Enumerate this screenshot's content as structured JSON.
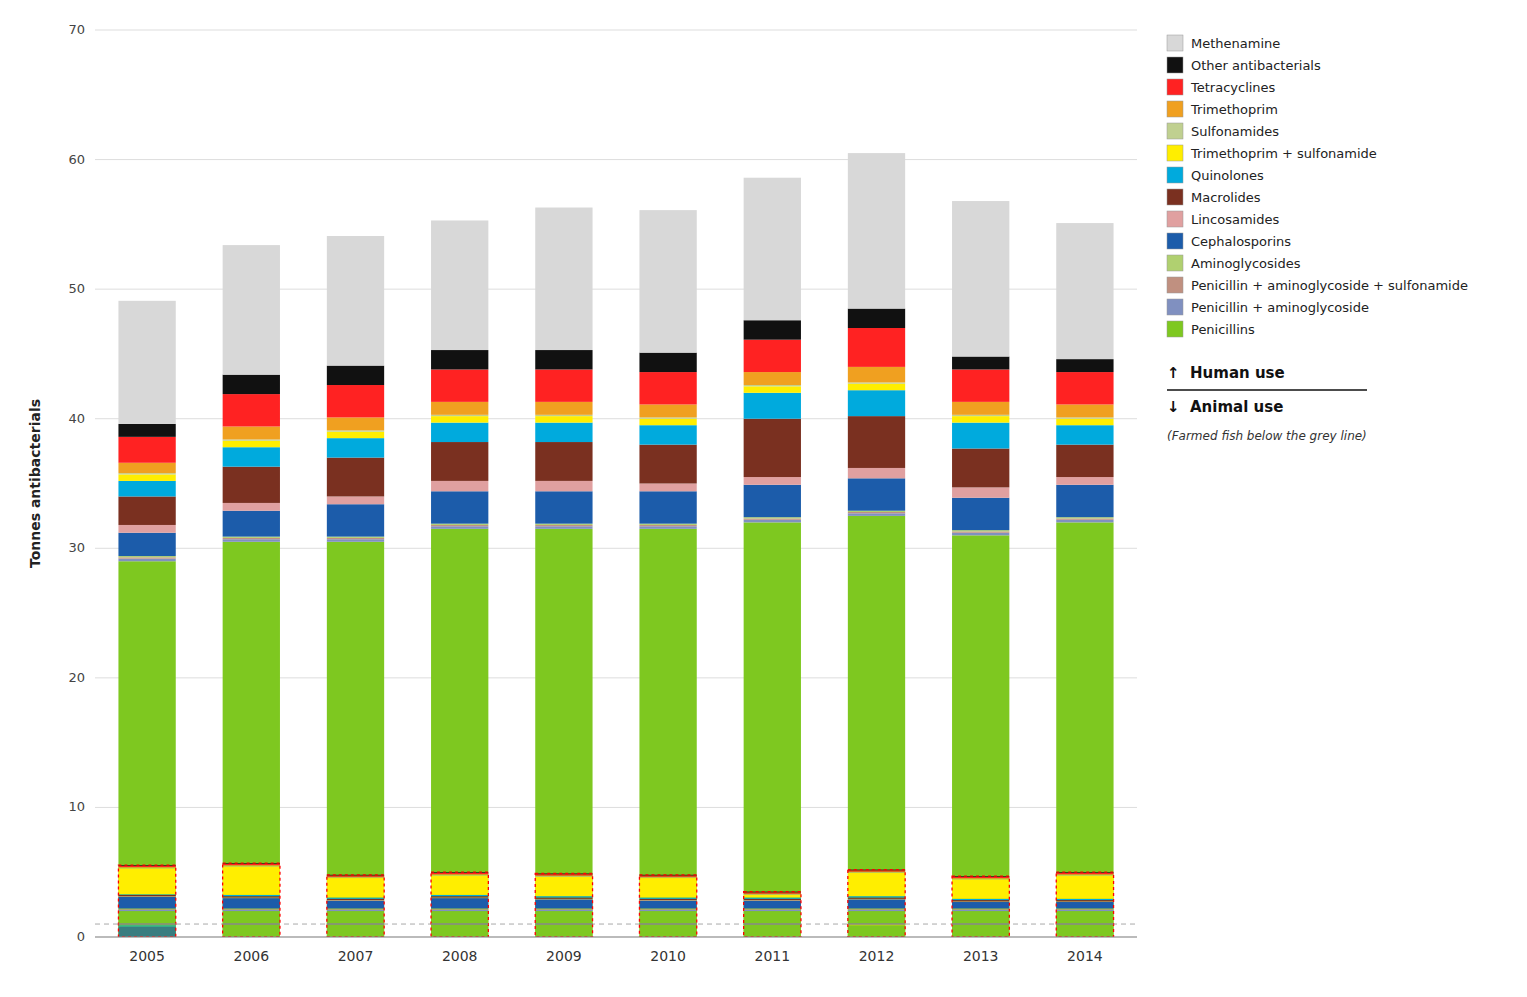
{
  "chart_data": {
    "type": "bar",
    "stacked": true,
    "categories": [
      "2005",
      "2006",
      "2007",
      "2008",
      "2009",
      "2010",
      "2011",
      "2012",
      "2013",
      "2014"
    ],
    "ylabel": "Tonnes antibacterials",
    "ylim": [
      0,
      70
    ],
    "yticks": [
      0,
      10,
      20,
      30,
      40,
      50,
      60,
      70
    ],
    "grid": true,
    "legend": "upper right",
    "grey_line": 1.0,
    "annotations": [
      "↑  Human use",
      "↓  Animal use",
      "(Farmed fish below the grey line)"
    ],
    "series": [
      {
        "name": "Penicillins",
        "color": "#7ec820",
        "values": [
          29.0,
          30.5,
          30.5,
          31.5,
          31.5,
          31.5,
          32.0,
          32.5,
          31.0,
          32.0
        ],
        "animal": [
          2.0,
          2.0,
          2.0,
          2.0,
          2.0,
          2.0,
          2.0,
          2.0,
          2.0,
          2.0
        ],
        "fish": [
          0.0,
          0.0,
          0.0,
          0.0,
          0.0,
          0.0,
          0.0,
          0.9,
          0.0,
          0.0
        ]
      },
      {
        "name": "Penicillin + aminoglycoside",
        "color": "#8090c0",
        "values": [
          0.2,
          0.2,
          0.2,
          0.2,
          0.2,
          0.2,
          0.2,
          0.2,
          0.2,
          0.2
        ],
        "animal": [
          0.1,
          0.1,
          0.1,
          0.1,
          0.1,
          0.1,
          0.1,
          0.1,
          0.1,
          0.1
        ]
      },
      {
        "name": "Penicillin + aminoglycoside + sulfonamide",
        "color": "#c09080",
        "values": [
          0.1,
          0.1,
          0.1,
          0.1,
          0.1,
          0.1,
          0.1,
          0.1,
          0.1,
          0.1
        ],
        "animal": [
          0.05,
          0.05,
          0.05,
          0.05,
          0.05,
          0.05,
          0.05,
          0.05,
          0.05,
          0.05
        ]
      },
      {
        "name": "Aminoglycosides",
        "color": "#b0d070",
        "values": [
          0.1,
          0.1,
          0.1,
          0.1,
          0.1,
          0.1,
          0.1,
          0.1,
          0.1,
          0.1
        ],
        "animal": [
          0.05,
          0.05,
          0.05,
          0.05,
          0.05,
          0.05,
          0.05,
          0.05,
          0.05,
          0.05
        ]
      },
      {
        "name": "Cephalosporins",
        "color": "#1c5caa",
        "values": [
          1.8,
          2.0,
          2.5,
          2.5,
          2.5,
          2.5,
          2.5,
          2.5,
          2.5,
          2.5
        ],
        "animal": [
          0.9,
          0.8,
          0.6,
          0.8,
          0.7,
          0.6,
          0.6,
          0.7,
          0.5,
          0.5
        ],
        "fish": [
          0.8,
          0.0,
          0.0,
          0.0,
          0.0,
          0.0,
          0.0,
          0.0,
          0.0,
          0.0
        ]
      },
      {
        "name": "Lincosamides",
        "color": "#e0a0a0",
        "values": [
          0.6,
          0.6,
          0.6,
          0.8,
          0.8,
          0.6,
          0.6,
          0.8,
          0.8,
          0.6
        ],
        "animal": [
          0.05,
          0.05,
          0.05,
          0.05,
          0.05,
          0.05,
          0.05,
          0.05,
          0.05,
          0.05
        ]
      },
      {
        "name": "Macrolides",
        "color": "#7a3020",
        "values": [
          2.2,
          2.8,
          3.0,
          3.0,
          3.0,
          3.0,
          4.5,
          4.0,
          3.0,
          2.5
        ],
        "animal": [
          0.1,
          0.1,
          0.1,
          0.1,
          0.1,
          0.1,
          0.1,
          0.1,
          0.1,
          0.1
        ]
      },
      {
        "name": "Quinolones",
        "color": "#00aadd",
        "values": [
          1.2,
          1.5,
          1.5,
          1.5,
          1.5,
          1.5,
          2.0,
          2.0,
          2.0,
          1.5
        ],
        "animal": [
          0.05,
          0.1,
          0.1,
          0.1,
          0.1,
          0.1,
          0.1,
          0.1,
          0.1,
          0.1
        ],
        "fish": [
          0.1,
          0.0,
          0.0,
          0.0,
          0.0,
          0.0,
          0.0,
          0.0,
          0.0,
          0.0
        ]
      },
      {
        "name": "Trimethoprim + sulfonamide",
        "color": "#ffee00",
        "values": [
          0.5,
          0.5,
          0.5,
          0.5,
          0.5,
          0.5,
          0.5,
          0.5,
          0.5,
          0.5
        ],
        "animal": [
          2.0,
          2.2,
          1.5,
          1.5,
          1.5,
          1.5,
          0.2,
          1.8,
          1.5,
          1.8
        ],
        "fish": [
          0.0,
          0.0,
          0.0,
          0.0,
          0.0,
          0.0,
          0.0,
          0.1,
          0.0,
          0.0
        ]
      },
      {
        "name": "Sulfonamides",
        "color": "#c0d090",
        "values": [
          0.1,
          0.1,
          0.1,
          0.1,
          0.1,
          0.1,
          0.1,
          0.1,
          0.1,
          0.1
        ],
        "animal": [
          0.05,
          0.05,
          0.05,
          0.05,
          0.05,
          0.05,
          0.05,
          0.05,
          0.05,
          0.05
        ]
      },
      {
        "name": "Trimethoprim",
        "color": "#f0a020",
        "values": [
          0.8,
          1.0,
          1.0,
          1.0,
          1.0,
          1.0,
          1.0,
          1.2,
          1.0,
          1.0
        ],
        "animal": [
          0.05,
          0.05,
          0.05,
          0.05,
          0.05,
          0.05,
          0.05,
          0.05,
          0.05,
          0.05
        ]
      },
      {
        "name": "Tetracyclines",
        "color": "#ff2222",
        "values": [
          2.0,
          2.5,
          2.5,
          2.5,
          2.5,
          2.5,
          2.5,
          3.0,
          2.5,
          2.5
        ],
        "animal": [
          0.1,
          0.1,
          0.1,
          0.1,
          0.1,
          0.1,
          0.1,
          0.1,
          0.1,
          0.1
        ]
      },
      {
        "name": "Other antibacterials",
        "color": "#111111",
        "values": [
          1.0,
          1.5,
          1.5,
          1.5,
          1.5,
          1.5,
          1.5,
          1.5,
          1.0,
          1.0
        ],
        "animal": [
          0.05,
          0.05,
          0.05,
          0.05,
          0.05,
          0.05,
          0.05,
          0.05,
          0.05,
          0.05
        ]
      },
      {
        "name": "Methenamine",
        "color": "#d8d8d8",
        "values": [
          9.5,
          10.0,
          10.0,
          10.0,
          11.0,
          11.0,
          11.0,
          12.0,
          12.0,
          10.5
        ]
      }
    ]
  }
}
